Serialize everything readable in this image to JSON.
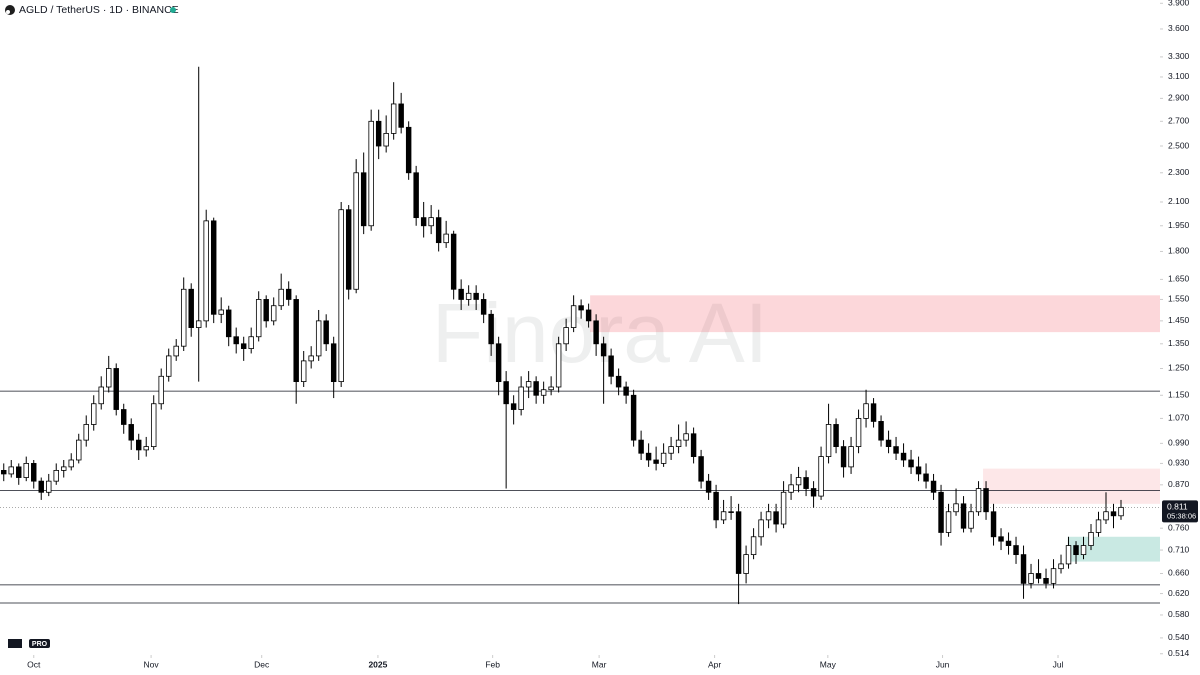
{
  "header": {
    "symbol": "AGLD / TetherUS · 1D · BINANCE",
    "logo_text": "PRO"
  },
  "chart_data": {
    "type": "candlestick",
    "watermark": "Finora AI",
    "log_scale": true,
    "grid": false,
    "up_color": "#ffffff",
    "down_color": "#000000",
    "wick_color": "#000000",
    "ylim": [
      0.512,
      3.94
    ],
    "yticks": [
      {
        "value": 3.9,
        "label": "3.900"
      },
      {
        "value": 3.6,
        "label": "3.600"
      },
      {
        "value": 3.3,
        "label": "3.300"
      },
      {
        "value": 3.1,
        "label": "3.100"
      },
      {
        "value": 2.9,
        "label": "2.900"
      },
      {
        "value": 2.7,
        "label": "2.700"
      },
      {
        "value": 2.5,
        "label": "2.500"
      },
      {
        "value": 2.3,
        "label": "2.300"
      },
      {
        "value": 2.1,
        "label": "2.100"
      },
      {
        "value": 1.95,
        "label": "1.950"
      },
      {
        "value": 1.8,
        "label": "1.800"
      },
      {
        "value": 1.65,
        "label": "1.650"
      },
      {
        "value": 1.55,
        "label": "1.550"
      },
      {
        "value": 1.45,
        "label": "1.450"
      },
      {
        "value": 1.35,
        "label": "1.350"
      },
      {
        "value": 1.25,
        "label": "1.250"
      },
      {
        "value": 1.15,
        "label": "1.150"
      },
      {
        "value": 1.07,
        "label": "1.070"
      },
      {
        "value": 0.99,
        "label": "0.990"
      },
      {
        "value": 0.93,
        "label": "0.930"
      },
      {
        "value": 0.87,
        "label": "0.870"
      },
      {
        "value": 0.76,
        "label": "0.760"
      },
      {
        "value": 0.71,
        "label": "0.710"
      },
      {
        "value": 0.66,
        "label": "0.660"
      },
      {
        "value": 0.62,
        "label": "0.620"
      },
      {
        "value": 0.58,
        "label": "0.580"
      },
      {
        "value": 0.54,
        "label": "0.540"
      },
      {
        "value": 0.514,
        "label": "0.514"
      }
    ],
    "xlim": [
      -0.5,
      154.2
    ],
    "xticks": [
      {
        "value": 4.0,
        "label": "Oct"
      },
      {
        "value": 19.65,
        "label": "Nov"
      },
      {
        "value": 34.4,
        "label": "Dec"
      },
      {
        "value": 49.9,
        "label": "2025"
      },
      {
        "value": 65.2,
        "label": "Feb"
      },
      {
        "value": 79.4,
        "label": "Mar"
      },
      {
        "value": 94.8,
        "label": "Apr"
      },
      {
        "value": 109.9,
        "label": "May"
      },
      {
        "value": 125.2,
        "label": "Jun"
      },
      {
        "value": 140.6,
        "label": "Jul"
      }
    ],
    "levels": [
      1.165,
      0.855,
      0.637,
      0.602
    ],
    "zones": [
      {
        "top": 1.57,
        "bottom": 1.4,
        "from": 78.2,
        "color": "rgba(242,54,69,0.2)"
      },
      {
        "top": 0.915,
        "bottom": 0.82,
        "from": 130.6,
        "color": "rgba(242,54,69,0.12)"
      },
      {
        "top": 0.74,
        "bottom": 0.685,
        "from": 141.9,
        "color": "rgba(8,153,129,0.22)"
      }
    ],
    "last_price": {
      "value": 0.811,
      "label": "0.811",
      "countdown": "05:38:06"
    },
    "ohlc": [
      [
        0.91,
        0.93,
        0.88,
        0.9
      ],
      [
        0.9,
        0.94,
        0.89,
        0.92
      ],
      [
        0.92,
        0.93,
        0.87,
        0.89
      ],
      [
        0.89,
        0.95,
        0.88,
        0.93
      ],
      [
        0.93,
        0.94,
        0.86,
        0.88
      ],
      [
        0.88,
        0.89,
        0.83,
        0.85
      ],
      [
        0.85,
        0.9,
        0.84,
        0.88
      ],
      [
        0.88,
        0.93,
        0.87,
        0.91
      ],
      [
        0.91,
        0.94,
        0.89,
        0.92
      ],
      [
        0.92,
        0.96,
        0.91,
        0.94
      ],
      [
        0.94,
        1.02,
        0.93,
        1.0
      ],
      [
        1.0,
        1.08,
        0.98,
        1.05
      ],
      [
        1.05,
        1.15,
        1.03,
        1.12
      ],
      [
        1.12,
        1.22,
        1.1,
        1.18
      ],
      [
        1.18,
        1.3,
        1.16,
        1.25
      ],
      [
        1.25,
        1.27,
        1.08,
        1.1
      ],
      [
        1.1,
        1.12,
        1.02,
        1.05
      ],
      [
        1.05,
        1.07,
        0.97,
        1.0
      ],
      [
        1.0,
        1.02,
        0.94,
        0.97
      ],
      [
        0.97,
        1.01,
        0.95,
        0.98
      ],
      [
        0.98,
        1.15,
        0.97,
        1.12
      ],
      [
        1.12,
        1.25,
        1.1,
        1.22
      ],
      [
        1.22,
        1.33,
        1.2,
        1.3
      ],
      [
        1.3,
        1.37,
        1.28,
        1.34
      ],
      [
        1.34,
        1.66,
        1.32,
        1.6
      ],
      [
        1.6,
        1.63,
        1.38,
        1.42
      ],
      [
        1.42,
        3.2,
        1.2,
        1.45
      ],
      [
        1.45,
        2.05,
        1.42,
        1.98
      ],
      [
        1.98,
        2.0,
        1.44,
        1.48
      ],
      [
        1.48,
        1.56,
        1.44,
        1.5
      ],
      [
        1.5,
        1.52,
        1.34,
        1.38
      ],
      [
        1.38,
        1.42,
        1.31,
        1.35
      ],
      [
        1.35,
        1.38,
        1.28,
        1.33
      ],
      [
        1.33,
        1.42,
        1.31,
        1.38
      ],
      [
        1.38,
        1.59,
        1.36,
        1.55
      ],
      [
        1.55,
        1.57,
        1.42,
        1.45
      ],
      [
        1.45,
        1.56,
        1.43,
        1.52
      ],
      [
        1.52,
        1.68,
        1.5,
        1.6
      ],
      [
        1.6,
        1.64,
        1.52,
        1.55
      ],
      [
        1.55,
        1.57,
        1.12,
        1.2
      ],
      [
        1.2,
        1.32,
        1.18,
        1.28
      ],
      [
        1.28,
        1.34,
        1.25,
        1.3
      ],
      [
        1.3,
        1.5,
        1.28,
        1.45
      ],
      [
        1.45,
        1.48,
        1.32,
        1.35
      ],
      [
        1.35,
        1.38,
        1.14,
        1.2
      ],
      [
        1.2,
        2.1,
        1.18,
        2.05
      ],
      [
        2.05,
        2.08,
        1.55,
        1.6
      ],
      [
        1.6,
        2.4,
        1.58,
        2.3
      ],
      [
        2.3,
        2.45,
        1.9,
        1.95
      ],
      [
        1.95,
        2.8,
        1.92,
        2.7
      ],
      [
        2.7,
        2.8,
        2.4,
        2.5
      ],
      [
        2.5,
        2.75,
        2.45,
        2.6
      ],
      [
        2.6,
        3.05,
        2.55,
        2.85
      ],
      [
        2.85,
        2.95,
        2.6,
        2.65
      ],
      [
        2.65,
        2.7,
        2.25,
        2.3
      ],
      [
        2.3,
        2.35,
        1.95,
        2.0
      ],
      [
        2.0,
        2.1,
        1.88,
        1.95
      ],
      [
        1.95,
        2.08,
        1.9,
        2.0
      ],
      [
        2.0,
        2.05,
        1.8,
        1.85
      ],
      [
        1.85,
        1.98,
        1.82,
        1.9
      ],
      [
        1.9,
        1.92,
        1.55,
        1.6
      ],
      [
        1.6,
        1.65,
        1.5,
        1.55
      ],
      [
        1.55,
        1.62,
        1.52,
        1.58
      ],
      [
        1.58,
        1.62,
        1.5,
        1.55
      ],
      [
        1.55,
        1.58,
        1.44,
        1.48
      ],
      [
        1.48,
        1.5,
        1.3,
        1.35
      ],
      [
        1.35,
        1.38,
        1.15,
        1.2
      ],
      [
        1.2,
        1.24,
        0.86,
        1.12
      ],
      [
        1.12,
        1.15,
        1.05,
        1.1
      ],
      [
        1.1,
        1.22,
        1.08,
        1.18
      ],
      [
        1.18,
        1.24,
        1.14,
        1.2
      ],
      [
        1.2,
        1.22,
        1.12,
        1.15
      ],
      [
        1.15,
        1.2,
        1.12,
        1.17
      ],
      [
        1.17,
        1.22,
        1.15,
        1.18
      ],
      [
        1.18,
        1.38,
        1.16,
        1.35
      ],
      [
        1.35,
        1.46,
        1.32,
        1.42
      ],
      [
        1.42,
        1.57,
        1.4,
        1.52
      ],
      [
        1.52,
        1.55,
        1.46,
        1.5
      ],
      [
        1.5,
        1.53,
        1.42,
        1.45
      ],
      [
        1.45,
        1.48,
        1.3,
        1.35
      ],
      [
        1.35,
        1.38,
        1.12,
        1.3
      ],
      [
        1.3,
        1.33,
        1.19,
        1.22
      ],
      [
        1.22,
        1.25,
        1.15,
        1.18
      ],
      [
        1.18,
        1.2,
        1.12,
        1.15
      ],
      [
        1.15,
        1.17,
        0.98,
        1.0
      ],
      [
        1.0,
        1.03,
        0.94,
        0.96
      ],
      [
        0.96,
        0.99,
        0.92,
        0.94
      ],
      [
        0.94,
        0.98,
        0.91,
        0.93
      ],
      [
        0.93,
        0.99,
        0.92,
        0.96
      ],
      [
        0.96,
        1.01,
        0.94,
        0.98
      ],
      [
        0.98,
        1.05,
        0.96,
        1.0
      ],
      [
        1.0,
        1.06,
        0.98,
        1.02
      ],
      [
        1.02,
        1.04,
        0.93,
        0.95
      ],
      [
        0.95,
        0.97,
        0.86,
        0.88
      ],
      [
        0.88,
        0.9,
        0.83,
        0.85
      ],
      [
        0.85,
        0.87,
        0.76,
        0.78
      ],
      [
        0.78,
        0.83,
        0.77,
        0.8
      ],
      [
        0.8,
        0.84,
        0.78,
        0.8
      ],
      [
        0.8,
        0.82,
        0.6,
        0.66
      ],
      [
        0.66,
        0.72,
        0.64,
        0.7
      ],
      [
        0.7,
        0.76,
        0.69,
        0.74
      ],
      [
        0.74,
        0.8,
        0.72,
        0.78
      ],
      [
        0.78,
        0.82,
        0.76,
        0.8
      ],
      [
        0.8,
        0.82,
        0.75,
        0.77
      ],
      [
        0.77,
        0.88,
        0.76,
        0.85
      ],
      [
        0.85,
        0.9,
        0.83,
        0.87
      ],
      [
        0.87,
        0.92,
        0.85,
        0.89
      ],
      [
        0.89,
        0.91,
        0.84,
        0.86
      ],
      [
        0.86,
        0.88,
        0.81,
        0.84
      ],
      [
        0.84,
        0.98,
        0.83,
        0.95
      ],
      [
        0.95,
        1.12,
        0.93,
        1.05
      ],
      [
        1.05,
        1.07,
        0.96,
        0.98
      ],
      [
        0.98,
        1.0,
        0.89,
        0.92
      ],
      [
        0.92,
        1.01,
        0.9,
        0.98
      ],
      [
        0.98,
        1.1,
        0.96,
        1.07
      ],
      [
        1.07,
        1.17,
        1.04,
        1.12
      ],
      [
        1.12,
        1.14,
        1.04,
        1.06
      ],
      [
        1.06,
        1.08,
        0.98,
        1.0
      ],
      [
        1.0,
        1.03,
        0.96,
        0.98
      ],
      [
        0.98,
        1.01,
        0.94,
        0.96
      ],
      [
        0.96,
        0.99,
        0.92,
        0.94
      ],
      [
        0.94,
        0.97,
        0.9,
        0.92
      ],
      [
        0.92,
        0.95,
        0.88,
        0.9
      ],
      [
        0.9,
        0.93,
        0.86,
        0.88
      ],
      [
        0.88,
        0.9,
        0.83,
        0.85
      ],
      [
        0.85,
        0.87,
        0.72,
        0.75
      ],
      [
        0.75,
        0.82,
        0.74,
        0.8
      ],
      [
        0.8,
        0.86,
        0.79,
        0.82
      ],
      [
        0.82,
        0.84,
        0.75,
        0.76
      ],
      [
        0.76,
        0.82,
        0.75,
        0.8
      ],
      [
        0.8,
        0.88,
        0.79,
        0.86
      ],
      [
        0.86,
        0.88,
        0.78,
        0.8
      ],
      [
        0.8,
        0.82,
        0.72,
        0.74
      ],
      [
        0.74,
        0.76,
        0.71,
        0.73
      ],
      [
        0.73,
        0.75,
        0.7,
        0.72
      ],
      [
        0.72,
        0.74,
        0.68,
        0.7
      ],
      [
        0.7,
        0.72,
        0.61,
        0.64
      ],
      [
        0.64,
        0.68,
        0.63,
        0.66
      ],
      [
        0.66,
        0.69,
        0.64,
        0.65
      ],
      [
        0.65,
        0.67,
        0.63,
        0.64
      ],
      [
        0.64,
        0.69,
        0.63,
        0.67
      ],
      [
        0.67,
        0.7,
        0.66,
        0.68
      ],
      [
        0.68,
        0.74,
        0.67,
        0.72
      ],
      [
        0.72,
        0.73,
        0.68,
        0.7
      ],
      [
        0.7,
        0.74,
        0.69,
        0.72
      ],
      [
        0.72,
        0.77,
        0.71,
        0.75
      ],
      [
        0.75,
        0.8,
        0.74,
        0.78
      ],
      [
        0.78,
        0.85,
        0.77,
        0.8
      ],
      [
        0.8,
        0.82,
        0.76,
        0.79
      ],
      [
        0.79,
        0.83,
        0.78,
        0.811
      ]
    ]
  }
}
